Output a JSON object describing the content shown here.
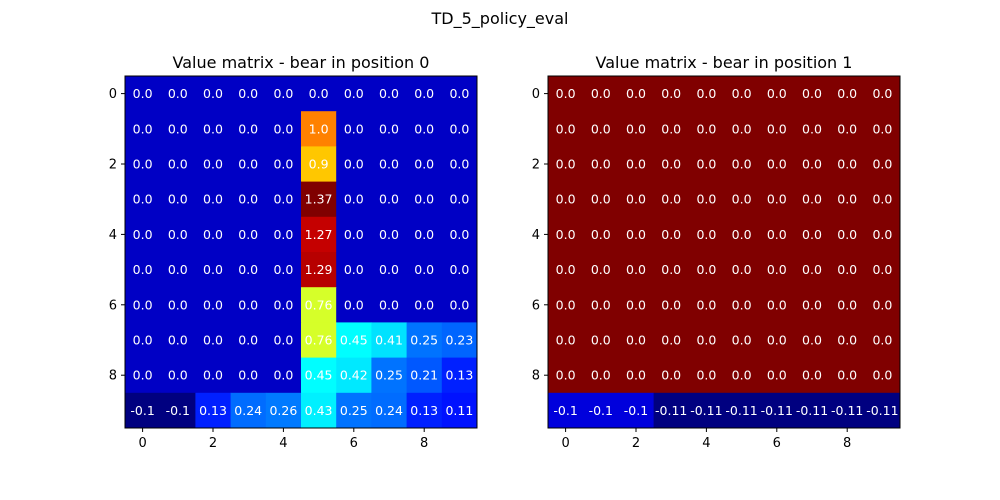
{
  "figure_title": "TD_5_policy_eval",
  "chart_data": [
    {
      "type": "heatmap",
      "title": "Value matrix - bear in position 0",
      "colormap": "jet",
      "xticks": [
        0,
        2,
        4,
        6,
        8
      ],
      "yticks": [
        0,
        2,
        4,
        6,
        8
      ],
      "grid": false,
      "values": [
        [
          0.0,
          0.0,
          0.0,
          0.0,
          0.0,
          0.0,
          0.0,
          0.0,
          0.0,
          0.0
        ],
        [
          0.0,
          0.0,
          0.0,
          0.0,
          0.0,
          1.0,
          0.0,
          0.0,
          0.0,
          0.0
        ],
        [
          0.0,
          0.0,
          0.0,
          0.0,
          0.0,
          0.9,
          0.0,
          0.0,
          0.0,
          0.0
        ],
        [
          0.0,
          0.0,
          0.0,
          0.0,
          0.0,
          1.37,
          0.0,
          0.0,
          0.0,
          0.0
        ],
        [
          0.0,
          0.0,
          0.0,
          0.0,
          0.0,
          1.27,
          0.0,
          0.0,
          0.0,
          0.0
        ],
        [
          0.0,
          0.0,
          0.0,
          0.0,
          0.0,
          1.29,
          0.0,
          0.0,
          0.0,
          0.0
        ],
        [
          0.0,
          0.0,
          0.0,
          0.0,
          0.0,
          0.76,
          0.0,
          0.0,
          0.0,
          0.0
        ],
        [
          0.0,
          0.0,
          0.0,
          0.0,
          0.0,
          0.76,
          0.45,
          0.41,
          0.25,
          0.23
        ],
        [
          0.0,
          0.0,
          0.0,
          0.0,
          0.0,
          0.45,
          0.42,
          0.25,
          0.21,
          0.13
        ],
        [
          -0.1,
          -0.1,
          0.13,
          0.24,
          0.26,
          0.43,
          0.25,
          0.24,
          0.13,
          0.11
        ]
      ],
      "labels": [
        [
          "0.0",
          "0.0",
          "0.0",
          "0.0",
          "0.0",
          "0.0",
          "0.0",
          "0.0",
          "0.0",
          "0.0"
        ],
        [
          "0.0",
          "0.0",
          "0.0",
          "0.0",
          "0.0",
          "1.0",
          "0.0",
          "0.0",
          "0.0",
          "0.0"
        ],
        [
          "0.0",
          "0.0",
          "0.0",
          "0.0",
          "0.0",
          "0.9",
          "0.0",
          "0.0",
          "0.0",
          "0.0"
        ],
        [
          "0.0",
          "0.0",
          "0.0",
          "0.0",
          "0.0",
          "1.37",
          "0.0",
          "0.0",
          "0.0",
          "0.0"
        ],
        [
          "0.0",
          "0.0",
          "0.0",
          "0.0",
          "0.0",
          "1.27",
          "0.0",
          "0.0",
          "0.0",
          "0.0"
        ],
        [
          "0.0",
          "0.0",
          "0.0",
          "0.0",
          "0.0",
          "1.29",
          "0.0",
          "0.0",
          "0.0",
          "0.0"
        ],
        [
          "0.0",
          "0.0",
          "0.0",
          "0.0",
          "0.0",
          "0.76",
          "0.0",
          "0.0",
          "0.0",
          "0.0"
        ],
        [
          "0.0",
          "0.0",
          "0.0",
          "0.0",
          "0.0",
          "0.76",
          "0.45",
          "0.41",
          "0.25",
          "0.23"
        ],
        [
          "0.0",
          "0.0",
          "0.0",
          "0.0",
          "0.0",
          "0.45",
          "0.42",
          "0.25",
          "0.21",
          "0.13"
        ],
        [
          "-0.1",
          "-0.1",
          "0.13",
          "0.24",
          "0.26",
          "0.43",
          "0.25",
          "0.24",
          "0.13",
          "0.11"
        ]
      ]
    },
    {
      "type": "heatmap",
      "title": "Value matrix - bear in position 1",
      "colormap": "jet",
      "xticks": [
        0,
        2,
        4,
        6,
        8
      ],
      "yticks": [
        0,
        2,
        4,
        6,
        8
      ],
      "grid": false,
      "values": [
        [
          0.0,
          0.0,
          0.0,
          0.0,
          0.0,
          0.0,
          0.0,
          0.0,
          0.0,
          0.0
        ],
        [
          0.0,
          0.0,
          0.0,
          0.0,
          0.0,
          0.0,
          0.0,
          0.0,
          0.0,
          0.0
        ],
        [
          0.0,
          0.0,
          0.0,
          0.0,
          0.0,
          0.0,
          0.0,
          0.0,
          0.0,
          0.0
        ],
        [
          0.0,
          0.0,
          0.0,
          0.0,
          0.0,
          0.0,
          0.0,
          0.0,
          0.0,
          0.0
        ],
        [
          0.0,
          0.0,
          0.0,
          0.0,
          0.0,
          0.0,
          0.0,
          0.0,
          0.0,
          0.0
        ],
        [
          0.0,
          0.0,
          0.0,
          0.0,
          0.0,
          0.0,
          0.0,
          0.0,
          0.0,
          0.0
        ],
        [
          0.0,
          0.0,
          0.0,
          0.0,
          0.0,
          0.0,
          0.0,
          0.0,
          0.0,
          0.0
        ],
        [
          0.0,
          0.0,
          0.0,
          0.0,
          0.0,
          0.0,
          0.0,
          0.0,
          0.0,
          0.0
        ],
        [
          0.0,
          0.0,
          0.0,
          0.0,
          0.0,
          0.0,
          0.0,
          0.0,
          0.0,
          0.0
        ],
        [
          -0.1,
          -0.1,
          -0.1,
          -0.11,
          -0.11,
          -0.11,
          -0.11,
          -0.11,
          -0.11,
          -0.11
        ]
      ],
      "labels": [
        [
          "0.0",
          "0.0",
          "0.0",
          "0.0",
          "0.0",
          "0.0",
          "0.0",
          "0.0",
          "0.0",
          "0.0"
        ],
        [
          "0.0",
          "0.0",
          "0.0",
          "0.0",
          "0.0",
          "0.0",
          "0.0",
          "0.0",
          "0.0",
          "0.0"
        ],
        [
          "0.0",
          "0.0",
          "0.0",
          "0.0",
          "0.0",
          "0.0",
          "0.0",
          "0.0",
          "0.0",
          "0.0"
        ],
        [
          "0.0",
          "0.0",
          "0.0",
          "0.0",
          "0.0",
          "0.0",
          "0.0",
          "0.0",
          "0.0",
          "0.0"
        ],
        [
          "0.0",
          "0.0",
          "0.0",
          "0.0",
          "0.0",
          "0.0",
          "0.0",
          "0.0",
          "0.0",
          "0.0"
        ],
        [
          "0.0",
          "0.0",
          "0.0",
          "0.0",
          "0.0",
          "0.0",
          "0.0",
          "0.0",
          "0.0",
          "0.0"
        ],
        [
          "0.0",
          "0.0",
          "0.0",
          "0.0",
          "0.0",
          "0.0",
          "0.0",
          "0.0",
          "0.0",
          "0.0"
        ],
        [
          "0.0",
          "0.0",
          "0.0",
          "0.0",
          "0.0",
          "0.0",
          "0.0",
          "0.0",
          "0.0",
          "0.0"
        ],
        [
          "0.0",
          "0.0",
          "0.0",
          "0.0",
          "0.0",
          "0.0",
          "0.0",
          "0.0",
          "0.0",
          "0.0"
        ],
        [
          "-0.1",
          "-0.1",
          "-0.1",
          "-0.11",
          "-0.11",
          "-0.11",
          "-0.11",
          "-0.11",
          "-0.11",
          "-0.11"
        ]
      ]
    }
  ]
}
